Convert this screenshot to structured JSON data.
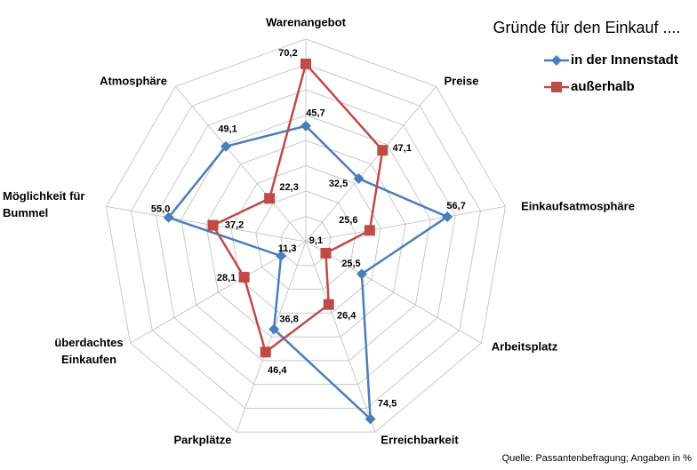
{
  "chart_data": {
    "type": "radar",
    "title": "Gründe für den Einkauf ....",
    "source": "Quelle: Passantenbefragung; Angaben in %",
    "categories": [
      "Warenangebot",
      "Preise",
      "Einkaufsatmosphäre",
      "Arbeitsplatz",
      "Erreichbarkeit",
      "Parkplätze",
      "überdachtes Einkaufen",
      "Möglichkeit für Bummel",
      "Atmosphäre"
    ],
    "rlim": [
      0,
      80
    ],
    "rticks": [
      0,
      10,
      20,
      30,
      40,
      50,
      60,
      70,
      80
    ],
    "grid": true,
    "series": [
      {
        "name": "in der Innenstadt",
        "color": "#4a7ebb",
        "marker": "diamond",
        "values": [
          45.7,
          32.5,
          56.7,
          25.5,
          74.5,
          36.8,
          11.3,
          55.0,
          49.1
        ],
        "value_labels": [
          "45,7",
          "32,5",
          "56,7",
          "25,5",
          "74,5",
          "36,8",
          "11,3",
          "55,0",
          "49,1"
        ]
      },
      {
        "name": "außerhalb",
        "color": "#be4b48",
        "marker": "square",
        "values": [
          70.2,
          47.1,
          25.6,
          9.1,
          26.4,
          46.4,
          28.1,
          37.2,
          22.3
        ],
        "value_labels": [
          "70,2",
          "47,1",
          "25,6",
          "9,1",
          "26,4",
          "46,4",
          "28,1",
          "37,2",
          "22,3"
        ]
      }
    ]
  }
}
